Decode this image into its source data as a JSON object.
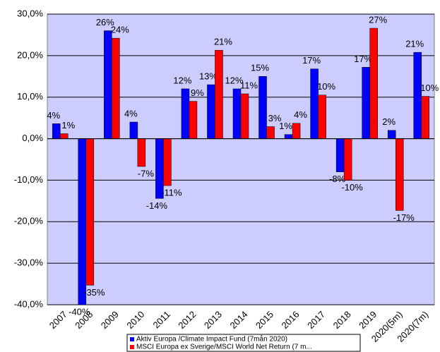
{
  "chart_data": {
    "type": "bar",
    "categories": [
      "2007",
      "2008",
      "2009",
      "2010",
      "2011",
      "2012",
      "2013",
      "2014",
      "2015",
      "2016",
      "2017",
      "2018",
      "2019",
      "2020(5m)",
      "2020(7m)"
    ],
    "series": [
      {
        "name": "Aktiv Europa /Climate Impact Fund (7mån 2020)",
        "color": "#0000ff",
        "values": [
          3.6,
          -40,
          26,
          4,
          -14.4,
          12,
          13,
          12,
          15,
          1,
          16.8,
          -8,
          17.2,
          2,
          20.8
        ],
        "value_labels": [
          "4%",
          "-40%",
          "26%",
          "4%",
          "-14%",
          "12%",
          "13%",
          "12%",
          "15%",
          "1%",
          "17%",
          "-8%",
          "17%",
          "2%",
          "21%"
        ]
      },
      {
        "name": "MSCI Europa ex Sverige/MSCI World Net Return (7 m...",
        "color": "#ff0000",
        "values": [
          1.2,
          -35.3,
          24.2,
          -6.7,
          -11.3,
          9,
          21.3,
          10.8,
          2.9,
          3.7,
          10.5,
          -10,
          26.6,
          -17.3,
          10.2
        ],
        "value_labels": [
          "1%",
          "-35%",
          "24%",
          "-7%",
          "-11%",
          "9%",
          "21%",
          "11%",
          "3%",
          "4%",
          "10%",
          "-10%",
          "27%",
          "-17%",
          "10%"
        ]
      }
    ],
    "ylim": [
      -40,
      30
    ],
    "yticks": [
      {
        "value": -40,
        "label": "-40,0%"
      },
      {
        "value": -30,
        "label": "-30,0%"
      },
      {
        "value": -20,
        "label": "-20,0%"
      },
      {
        "value": -10,
        "label": "-10,0%"
      },
      {
        "value": 0,
        "label": "0,0%"
      },
      {
        "value": 10,
        "label": "10,0%"
      },
      {
        "value": 20,
        "label": "20,0%"
      },
      {
        "value": 30,
        "label": "30,0%"
      }
    ],
    "grid": true,
    "background": "#ccccff"
  }
}
